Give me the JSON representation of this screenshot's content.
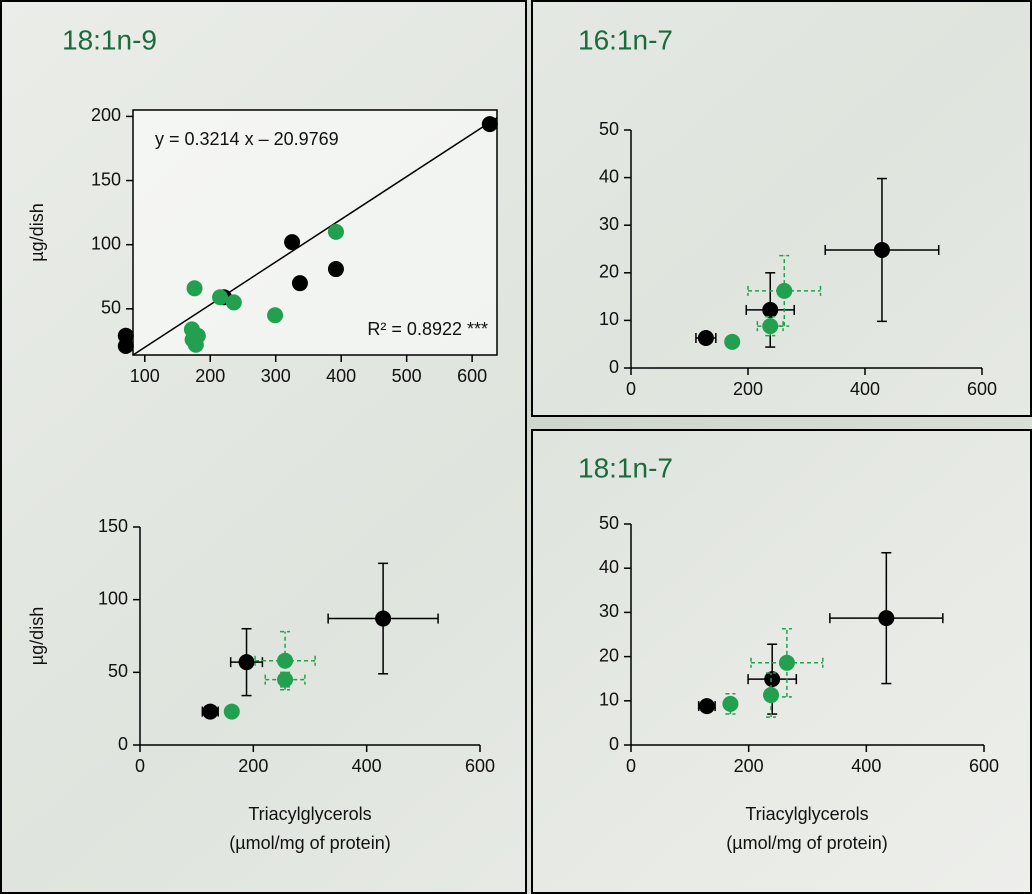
{
  "chart_data": [
    {
      "type": "scatter",
      "title": "18:1n-9",
      "ylabel": "µg/dish",
      "xlim": [
        82,
        638
      ],
      "ylim": [
        14,
        205
      ],
      "xticks": [
        100,
        200,
        300,
        400,
        500,
        600
      ],
      "yticks": [
        50,
        100,
        150,
        200
      ],
      "annotations": [
        "y = 0.3214 x – 20.9769",
        "R² = 0.8922 ***"
      ],
      "trendline": {
        "x": [
          82,
          638
        ],
        "y": [
          14,
          199
        ]
      },
      "series": [
        {
          "color": "#000000",
          "dashed": false,
          "x": [
            71,
            71,
            221,
            337,
            325,
            392,
            627
          ],
          "values": [
            29,
            21,
            59,
            70,
            102,
            81,
            194
          ]
        },
        {
          "color": "#22a04f",
          "dashed": false,
          "x": [
            176,
            172,
            173,
            178,
            181,
            215,
            236,
            299,
            392
          ],
          "values": [
            66,
            34,
            26,
            22,
            29,
            59,
            55,
            45,
            110
          ]
        }
      ]
    },
    {
      "type": "scatter",
      "ylabel": "µg/dish",
      "xlabel": [
        "Triacylglycerols",
        "(µmol/mg of protein)"
      ],
      "xlim": [
        0,
        600
      ],
      "ylim": [
        0,
        150
      ],
      "xticks": [
        0,
        200,
        400,
        600
      ],
      "yticks": [
        0,
        50,
        100,
        150
      ],
      "series": [
        {
          "color": "#000000",
          "dashed": false,
          "x": [
            124,
            188,
            429
          ],
          "values": [
            23,
            57,
            87
          ],
          "xerr": [
            14,
            28,
            97
          ],
          "yerr": [
            2,
            23,
            38
          ]
        },
        {
          "color": "#22a04f",
          "dashed": true,
          "x": [
            162,
            256,
            256
          ],
          "values": [
            23,
            58,
            45
          ],
          "xerr": [
            8,
            53,
            35
          ],
          "yerr": [
            3,
            20,
            5
          ]
        }
      ]
    },
    {
      "type": "scatter",
      "title": "16:1n-7",
      "xlim": [
        0,
        600
      ],
      "ylim": [
        0,
        50
      ],
      "xticks": [
        0,
        200,
        400,
        600
      ],
      "yticks": [
        0,
        10,
        20,
        30,
        40,
        50
      ],
      "series": [
        {
          "color": "#000000",
          "dashed": false,
          "x": [
            128,
            238,
            429
          ],
          "values": [
            6.3,
            12.2,
            24.8
          ],
          "xerr": [
            17,
            41,
            97
          ],
          "yerr": [
            0.5,
            7.8,
            15
          ]
        },
        {
          "color": "#22a04f",
          "dashed": true,
          "x": [
            173,
            238,
            262
          ],
          "values": [
            5.5,
            8.8,
            16.2
          ],
          "xerr": [
            5,
            22,
            62
          ],
          "yerr": [
            0.5,
            2,
            7.4
          ]
        }
      ]
    },
    {
      "type": "scatter",
      "title": "18:1n-7",
      "xlabel": [
        "Triacylglycerols",
        "(µmol/mg of protein)"
      ],
      "xlim": [
        0,
        600
      ],
      "ylim": [
        0,
        50
      ],
      "xticks": [
        0,
        200,
        400,
        600
      ],
      "yticks": [
        0,
        10,
        20,
        30,
        40,
        50
      ],
      "series": [
        {
          "color": "#000000",
          "dashed": false,
          "x": [
            129,
            240,
            434
          ],
          "values": [
            8.8,
            14.9,
            28.7
          ],
          "xerr": [
            14,
            41,
            96
          ],
          "yerr": [
            0.5,
            7.9,
            14.8
          ]
        },
        {
          "color": "#22a04f",
          "dashed": true,
          "x": [
            169,
            238,
            265
          ],
          "values": [
            9.3,
            11.3,
            18.6
          ],
          "xerr": [
            5,
            10,
            61
          ],
          "yerr": [
            2.3,
            5,
            7.7
          ]
        }
      ]
    }
  ]
}
